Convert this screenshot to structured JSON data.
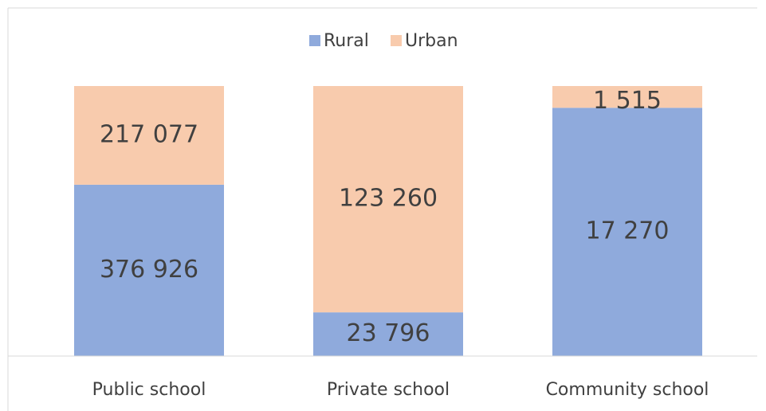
{
  "chart_data": {
    "type": "bar",
    "stacking": "percent",
    "categories": [
      "Public school",
      "Private school",
      "Community school"
    ],
    "series": [
      {
        "name": "Rural",
        "color": "#8faadc",
        "values": [
          376926,
          23796,
          17270
        ],
        "value_labels": [
          "376 926",
          "23 796",
          "17 270"
        ]
      },
      {
        "name": "Urban",
        "color": "#f8cbad",
        "values": [
          217077,
          123260,
          1515
        ],
        "value_labels": [
          "217 077",
          "123 260",
          "1 515"
        ]
      }
    ],
    "legend": "top"
  }
}
